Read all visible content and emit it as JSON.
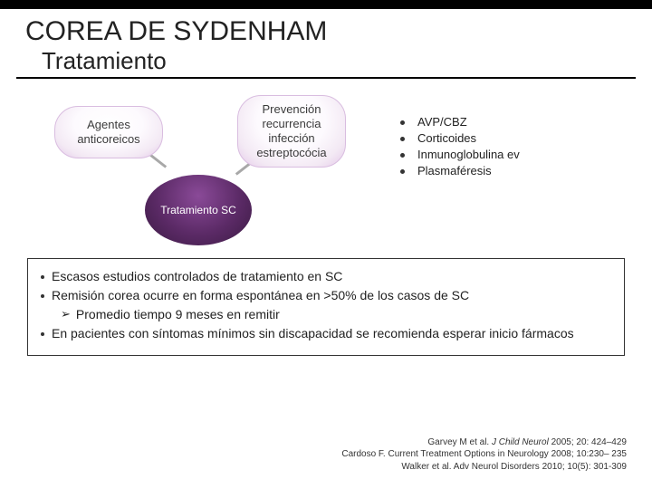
{
  "title": "COREA DE SYDENHAM",
  "subtitle": "Tratamiento",
  "diagram": {
    "left_pill": "Agentes anticoreicos",
    "right_pill": "Prevención recurrencia infección estreptocócia",
    "center": "Tratamiento SC"
  },
  "right_list": [
    "AVP/CBZ",
    "Corticoides",
    "Inmunoglobulina ev",
    "Plasmaféresis"
  ],
  "box": {
    "b1": "Escasos estudios controlados de tratamiento en SC",
    "b2": "Remisión corea ocurre en forma espontánea en >50% de los casos de SC",
    "b2_sub": "Promedio tiempo 9 meses en remitir",
    "b3": "En pacientes con síntomas mínimos sin discapacidad se recomienda esperar inicio fármacos"
  },
  "refs": {
    "r1a": "Garvey M et al. ",
    "r1b": "J Child Neurol",
    "r1c": " 2005; 20: 424–429",
    "r2": "Cardoso F. Current Treatment Options in Neurology 2008; 10:230– 235",
    "r3": "Walker et al. Adv Neurol Disorders 2010; 10(5): 301-309"
  },
  "colors": {
    "topbar": "#000000",
    "pill_border": "#d9bde0",
    "circle_dark": "#3a1a42",
    "text": "#222222"
  }
}
